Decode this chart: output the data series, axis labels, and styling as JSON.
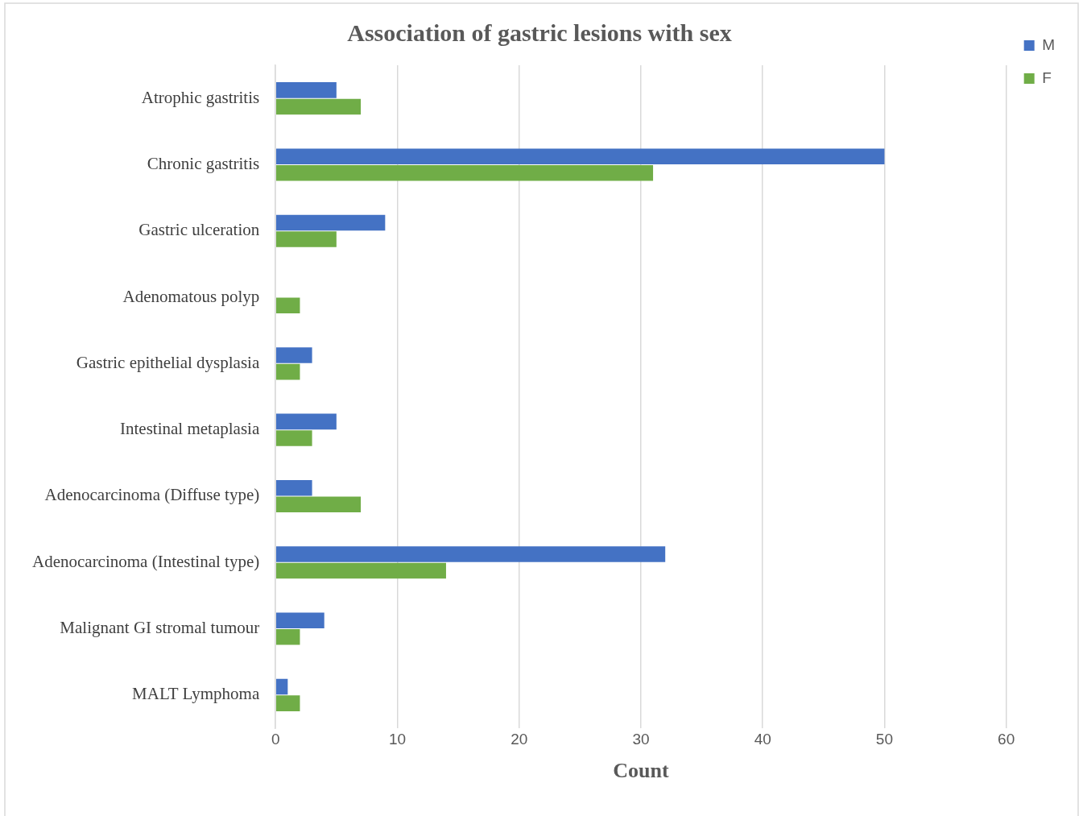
{
  "chart_data": {
    "type": "bar",
    "orientation": "horizontal",
    "title": "Association of gastric lesions with sex",
    "xlabel": "Count",
    "categories": [
      "Atrophic gastritis",
      "Chronic gastritis",
      "Gastric ulceration",
      "Adenomatous polyp",
      "Gastric epithelial dysplasia",
      "Intestinal metaplasia",
      "Adenocarcinoma (Diffuse type)",
      "Adenocarcinoma (Intestinal type)",
      "Malignant GI stromal tumour",
      "MALT Lymphoma"
    ],
    "series": [
      {
        "name": "M",
        "color": "#4472c4",
        "values": [
          5,
          50,
          9,
          0,
          3,
          5,
          3,
          32,
          4,
          1
        ]
      },
      {
        "name": "F",
        "color": "#70ad47",
        "values": [
          7,
          31,
          5,
          2,
          2,
          3,
          7,
          14,
          2,
          2
        ]
      }
    ],
    "xlim": [
      0,
      60
    ],
    "xticks": [
      0,
      10,
      20,
      30,
      40,
      50,
      60
    ],
    "grid": "x",
    "legend": "top right"
  }
}
